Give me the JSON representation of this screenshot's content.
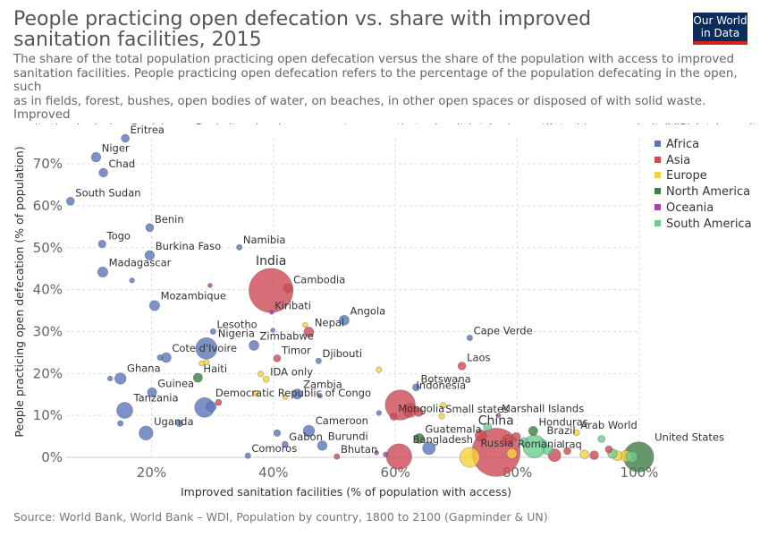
{
  "header": {
    "title": "People practicing open defecation vs. share with improved sanitation facilities, 2015",
    "subtitle": "The share of the total population practicing open defecation versus the share of the population with access to improved\nsanitation facilities. People practicing open defecation refers to the percentage of the population defecating in the open, such\nas in fields, forest, bushes, open bodies of water, on beaches, in other open spaces or disposed of with solid waste. Improved\nsanitation includes flush/pour flush (to piped sewer system, septic tank, pit latrine), ventilated improved pit (VIP) latrine, pit\nlatrine with slab, and composting toilet.",
    "logo_line1": "Our World",
    "logo_line2": "in Data"
  },
  "footer": {
    "source": "Source: World Bank, World Bank – WDI, Population by country, 1800 to 2100 (Gapminder & UN)"
  },
  "colors": {
    "Africa": "#5b75b9",
    "Asia": "#cd4a55",
    "Europe": "#f5d338",
    "North America": "#3e7d45",
    "Oceania": "#a544ab",
    "South America": "#6ccd8f"
  },
  "chart_data": {
    "type": "scatter",
    "xlabel": "Improved sanitation facilities (% of population with access)",
    "ylabel": "People practicing open defecation (% of population)",
    "xlim": [
      6,
      100
    ],
    "ylim": [
      0,
      76
    ],
    "x_ticks": [
      "20%",
      "40%",
      "60%",
      "80%",
      "100%"
    ],
    "y_ticks": [
      "0%",
      "10%",
      "20%",
      "30%",
      "40%",
      "50%",
      "60%",
      "70%"
    ],
    "grid": true,
    "legend_position": "right",
    "legend": [
      "Africa",
      "Asia",
      "Europe",
      "North America",
      "Oceania",
      "South America"
    ],
    "size_variable": "population",
    "points": [
      {
        "label": "Eritrea",
        "x": 15.7,
        "y": 76.1,
        "region": "Africa",
        "size": 1
      },
      {
        "label": "Niger",
        "x": 10.9,
        "y": 71.6,
        "region": "Africa",
        "size": 1.4
      },
      {
        "label": "Chad",
        "x": 12.1,
        "y": 67.9,
        "region": "Africa",
        "size": 1.2
      },
      {
        "label": "South Sudan",
        "x": 6.7,
        "y": 61.1,
        "region": "Africa",
        "size": 1
      },
      {
        "label": "Benin",
        "x": 19.7,
        "y": 54.8,
        "region": "Africa",
        "size": 1
      },
      {
        "label": "Togo",
        "x": 11.9,
        "y": 50.9,
        "region": "Africa",
        "size": 0.9
      },
      {
        "label": "Namibia",
        "x": 34.4,
        "y": 50.1,
        "region": "Africa",
        "size": 0.5
      },
      {
        "label": "Burkina Faso",
        "x": 19.7,
        "y": 48.2,
        "region": "Africa",
        "size": 1.4
      },
      {
        "label": "Madagascar",
        "x": 12.0,
        "y": 44.2,
        "region": "Africa",
        "size": 1.6
      },
      {
        "label": "India",
        "x": 39.6,
        "y": 39.8,
        "region": "Asia",
        "size": 30
      },
      {
        "label": "Cambodia",
        "x": 42.4,
        "y": 40.3,
        "region": "Asia",
        "size": 1.2
      },
      {
        "label": "Mozambique",
        "x": 20.5,
        "y": 36.2,
        "region": "Africa",
        "size": 1.6
      },
      {
        "label": "Kiribati",
        "x": 39.7,
        "y": 34.6,
        "region": "Oceania",
        "size": 0.3
      },
      {
        "label": "Angola",
        "x": 51.6,
        "y": 32.7,
        "region": "Africa",
        "size": 1.5
      },
      {
        "label": "Nepal",
        "x": 45.8,
        "y": 29.9,
        "region": "Asia",
        "size": 1.5
      },
      {
        "label": "Lesotho",
        "x": 30.1,
        "y": 30.0,
        "region": "Africa",
        "size": 0.5
      },
      {
        "label": "Nigeria",
        "x": 29.0,
        "y": 26.0,
        "region": "Africa",
        "size": 7
      },
      {
        "label": "Zimbabwe",
        "x": 36.8,
        "y": 26.7,
        "region": "Africa",
        "size": 1.5
      },
      {
        "label": "Cote d'Ivoire",
        "x": 22.4,
        "y": 23.8,
        "region": "Africa",
        "size": 1.5
      },
      {
        "label": "Cape Verde",
        "x": 72.2,
        "y": 28.5,
        "region": "Africa",
        "size": 0.5
      },
      {
        "label": "Timor",
        "x": 40.6,
        "y": 23.6,
        "region": "Asia",
        "size": 0.8
      },
      {
        "label": "Djibouti",
        "x": 47.4,
        "y": 23.0,
        "region": "Africa",
        "size": 0.5
      },
      {
        "label": "Laos",
        "x": 70.9,
        "y": 21.8,
        "region": "Asia",
        "size": 1
      },
      {
        "label": "Ghana",
        "x": 14.9,
        "y": 18.8,
        "region": "Africa",
        "size": 2
      },
      {
        "label": "Haiti",
        "x": 27.6,
        "y": 19.0,
        "region": "North America",
        "size": 1.3
      },
      {
        "label": "IDA only",
        "x": 38.8,
        "y": 18.6,
        "region": "Europe",
        "size": 0.6
      },
      {
        "label": "Botswana",
        "x": 63.4,
        "y": 16.7,
        "region": "Africa",
        "size": 0.8
      },
      {
        "label": "Guinea",
        "x": 20.1,
        "y": 15.5,
        "region": "Africa",
        "size": 1.3
      },
      {
        "label": "Zambia",
        "x": 43.9,
        "y": 15.1,
        "region": "Africa",
        "size": 1.6
      },
      {
        "label": "Democratic Republic of Congo",
        "x": 28.7,
        "y": 11.9,
        "region": "Africa",
        "size": 6
      },
      {
        "label": "Indonesia",
        "x": 60.8,
        "y": 12.5,
        "region": "Asia",
        "size": 14
      },
      {
        "label": "Tanzania",
        "x": 15.6,
        "y": 11.2,
        "region": "Africa",
        "size": 4
      },
      {
        "label": "Mongolia",
        "x": 59.7,
        "y": 9.7,
        "region": "Asia",
        "size": 0.8
      },
      {
        "label": "Small states",
        "x": 67.6,
        "y": 9.8,
        "region": "Europe",
        "size": 0.5
      },
      {
        "label": "Marshall Islands",
        "x": 76.9,
        "y": 10.0,
        "region": "Oceania",
        "size": 0.3
      },
      {
        "label": "Uganda",
        "x": 19.1,
        "y": 5.8,
        "region": "Africa",
        "size": 3
      },
      {
        "label": "Cameroon",
        "x": 45.8,
        "y": 6.3,
        "region": "Africa",
        "size": 2
      },
      {
        "label": "Honduras",
        "x": 82.6,
        "y": 6.3,
        "region": "North America",
        "size": 1.3
      },
      {
        "label": "Arab World",
        "x": 89.7,
        "y": 5.9,
        "region": "Europe",
        "size": 0.6
      },
      {
        "label": "Guatemala",
        "x": 63.9,
        "y": 4.5,
        "region": "North America",
        "size": 1.5
      },
      {
        "label": "China",
        "x": 76.5,
        "y": 1.2,
        "region": "Asia",
        "size": 36
      },
      {
        "label": "Gabon",
        "x": 41.9,
        "y": 3.1,
        "region": "Africa",
        "size": 0.6
      },
      {
        "label": "Burundi",
        "x": 48.0,
        "y": 2.8,
        "region": "Africa",
        "size": 1.4
      },
      {
        "label": "Brazil",
        "x": 82.8,
        "y": 2.6,
        "region": "South America",
        "size": 8
      },
      {
        "label": "United States",
        "x": 99.9,
        "y": 0.1,
        "region": "North America",
        "size": 14
      },
      {
        "label": "Comoros",
        "x": 35.8,
        "y": 0.4,
        "region": "Africa",
        "size": 0.5
      },
      {
        "label": "Bangladesh",
        "x": 60.6,
        "y": 0.2,
        "region": "Asia",
        "size": 10
      },
      {
        "label": "Bhutan",
        "x": 50.4,
        "y": 0.2,
        "region": "Asia",
        "size": 0.5
      },
      {
        "label": "Russia",
        "x": 72.2,
        "y": 0.0,
        "region": "Europe",
        "size": 6
      },
      {
        "label": "Romania",
        "x": 79.1,
        "y": 0.9,
        "region": "Europe",
        "size": 1.6
      },
      {
        "label": "Iraq",
        "x": 86.1,
        "y": 0.5,
        "region": "Asia",
        "size": 2.5
      }
    ],
    "unlabeled_points": [
      {
        "x": 13.2,
        "y": 18.8,
        "region": "Africa",
        "size": 0.4
      },
      {
        "x": 14.9,
        "y": 8.1,
        "region": "Africa",
        "size": 0.5
      },
      {
        "x": 16.8,
        "y": 42.2,
        "region": "Africa",
        "size": 0.4
      },
      {
        "x": 29.6,
        "y": 41.0,
        "region": "Oceania",
        "size": 0.3
      },
      {
        "x": 21.4,
        "y": 23.8,
        "region": "Africa",
        "size": 0.5
      },
      {
        "x": 24.6,
        "y": 8.1,
        "region": "Africa",
        "size": 0.7
      },
      {
        "x": 29.8,
        "y": 12.1,
        "region": "Africa",
        "size": 1.5
      },
      {
        "x": 31.0,
        "y": 13.1,
        "region": "Asia",
        "size": 0.6
      },
      {
        "x": 28.2,
        "y": 22.4,
        "region": "Europe",
        "size": 0.4
      },
      {
        "x": 29.0,
        "y": 22.7,
        "region": "Europe",
        "size": 0.5
      },
      {
        "x": 37.9,
        "y": 19.9,
        "region": "Europe",
        "size": 0.5
      },
      {
        "x": 39.9,
        "y": 30.3,
        "region": "Africa",
        "size": 0.3
      },
      {
        "x": 45.2,
        "y": 31.6,
        "region": "Europe",
        "size": 0.4
      },
      {
        "x": 37.1,
        "y": 15.3,
        "region": "Europe",
        "size": 0.5
      },
      {
        "x": 41.9,
        "y": 14.4,
        "region": "Europe",
        "size": 0.4
      },
      {
        "x": 47.6,
        "y": 14.7,
        "region": "Africa",
        "size": 0.4
      },
      {
        "x": 57.3,
        "y": 20.9,
        "region": "Europe",
        "size": 0.5
      },
      {
        "x": 57.3,
        "y": 10.6,
        "region": "Africa",
        "size": 0.4
      },
      {
        "x": 67.8,
        "y": 12.4,
        "region": "Europe",
        "size": 0.5
      },
      {
        "x": 62.4,
        "y": 11.2,
        "region": "Asia",
        "size": 3
      },
      {
        "x": 63.8,
        "y": 10.8,
        "region": "Asia",
        "size": 1.2
      },
      {
        "x": 40.6,
        "y": 5.8,
        "region": "Africa",
        "size": 0.7
      },
      {
        "x": 65.5,
        "y": 2.2,
        "region": "Africa",
        "size": 2.5
      },
      {
        "x": 58.4,
        "y": 0.7,
        "region": "Oceania",
        "size": 0.4
      },
      {
        "x": 56.9,
        "y": 1.1,
        "region": "Oceania",
        "size": 0.3
      },
      {
        "x": 74.0,
        "y": 5.2,
        "region": "Asia",
        "size": 2
      },
      {
        "x": 75.1,
        "y": 7.2,
        "region": "South America",
        "size": 1
      },
      {
        "x": 78.4,
        "y": 4.2,
        "region": "Asia",
        "size": 1.7
      },
      {
        "x": 79.8,
        "y": 4.9,
        "region": "Asia",
        "size": 1.2
      },
      {
        "x": 81.1,
        "y": 3.7,
        "region": "South America",
        "size": 1.2
      },
      {
        "x": 84.2,
        "y": 3.3,
        "region": "South America",
        "size": 1
      },
      {
        "x": 85.0,
        "y": 1.8,
        "region": "South America",
        "size": 1.5
      },
      {
        "x": 88.2,
        "y": 1.5,
        "region": "Asia",
        "size": 0.8
      },
      {
        "x": 91.0,
        "y": 0.7,
        "region": "Europe",
        "size": 1.2
      },
      {
        "x": 92.6,
        "y": 0.5,
        "region": "Asia",
        "size": 1.2
      },
      {
        "x": 93.8,
        "y": 4.4,
        "region": "South America",
        "size": 0.8
      },
      {
        "x": 95.0,
        "y": 1.9,
        "region": "Asia",
        "size": 0.8
      },
      {
        "x": 95.6,
        "y": 0.9,
        "region": "South America",
        "size": 1.4
      },
      {
        "x": 96.4,
        "y": 0.4,
        "region": "Europe",
        "size": 1.5
      },
      {
        "x": 97.8,
        "y": 0.3,
        "region": "Europe",
        "size": 2
      },
      {
        "x": 98.8,
        "y": 0.1,
        "region": "South America",
        "size": 2
      }
    ]
  }
}
